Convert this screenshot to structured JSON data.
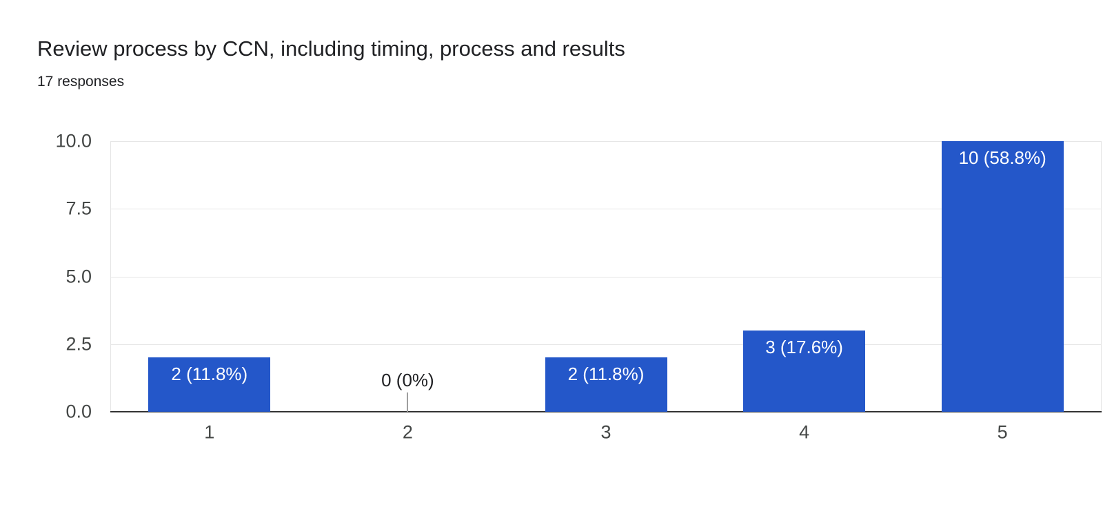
{
  "header": {
    "title": "Review process by CCN, including timing, process and results",
    "subtitle": "17 responses"
  },
  "chart_data": {
    "type": "bar",
    "title": "Review process by CCN, including timing, process and results",
    "subtitle": "17 responses",
    "categories": [
      "1",
      "2",
      "3",
      "4",
      "5"
    ],
    "values": [
      2,
      0,
      2,
      3,
      10
    ],
    "bar_labels": [
      "2 (11.8%)",
      "0 (0%)",
      "2 (11.8%)",
      "3 (17.6%)",
      "10 (58.8%)"
    ],
    "xlabel": "",
    "ylabel": "",
    "ylim": [
      0,
      10
    ],
    "yticks": [
      {
        "value": 0,
        "label": "0.0"
      },
      {
        "value": 2.5,
        "label": "2.5"
      },
      {
        "value": 5,
        "label": "5.0"
      },
      {
        "value": 7.5,
        "label": "7.5"
      },
      {
        "value": 10,
        "label": "10.0"
      }
    ],
    "grid": true,
    "legend": "none",
    "colors": {
      "bar": "#2457C9",
      "bar_label_text": "#ffffff",
      "zero_label_text": "#202124",
      "zero_stem": "#9e9e9e",
      "gridline": "#e6e6e6",
      "baseline": "#333333",
      "axis_text": "#444746",
      "title_text": "#202124",
      "background": "#ffffff"
    }
  }
}
